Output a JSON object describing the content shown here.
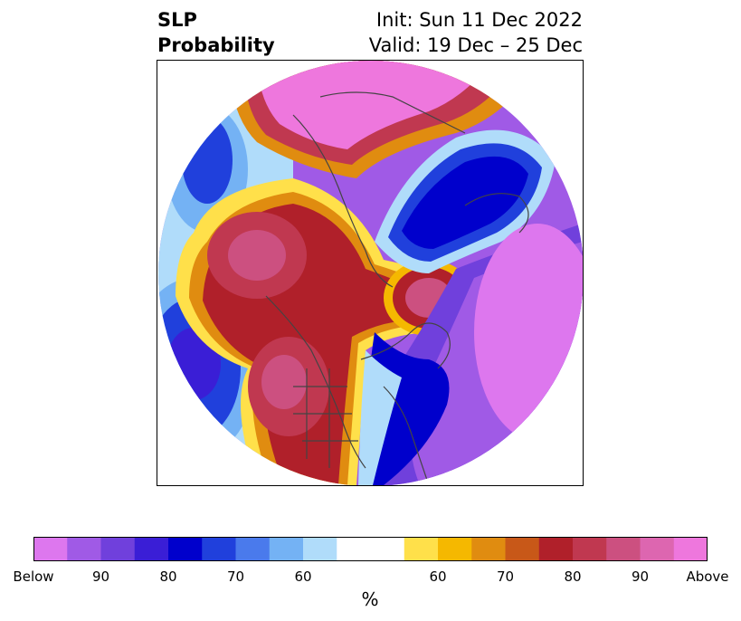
{
  "title": {
    "left_line1": "SLP",
    "left_line2": "Probability",
    "right_line1": "Init: Sun 11 Dec 2022",
    "right_line2": "Valid: 19 Dec – 25 Dec"
  },
  "colorbar": {
    "unit": "%",
    "colors": [
      "#dd77ee",
      "#a05ae6",
      "#7040dc",
      "#3a1ed6",
      "#0000cc",
      "#2040dc",
      "#4a7aec",
      "#74b2f4",
      "#b0dcfa",
      "#ffffff",
      "#ffe04a",
      "#f5b800",
      "#e08c10",
      "#c85818",
      "#b0202a",
      "#c03850",
      "#cc5080",
      "#dd66b0",
      "#ee77dd"
    ],
    "tick_labels": [
      "Below",
      "90",
      "80",
      "70",
      "60",
      "60",
      "70",
      "80",
      "90",
      "Above"
    ]
  },
  "map": {
    "projection": "north polar stereographic",
    "field": "SLP probability",
    "regions": [
      {
        "name": "alaska-above-anomaly",
        "color": "#b0202a"
      },
      {
        "name": "arctic-below-anomaly",
        "color": "#0000cc"
      },
      {
        "name": "north-atlantic-below-anomaly",
        "color": "#dd77ee"
      },
      {
        "name": "western-us-above-anomaly",
        "color": "#c03850"
      },
      {
        "name": "siberia-above-anomaly",
        "color": "#ee77dd"
      },
      {
        "name": "north-pacific-below-anomaly",
        "color": "#3a1ed6"
      }
    ]
  }
}
